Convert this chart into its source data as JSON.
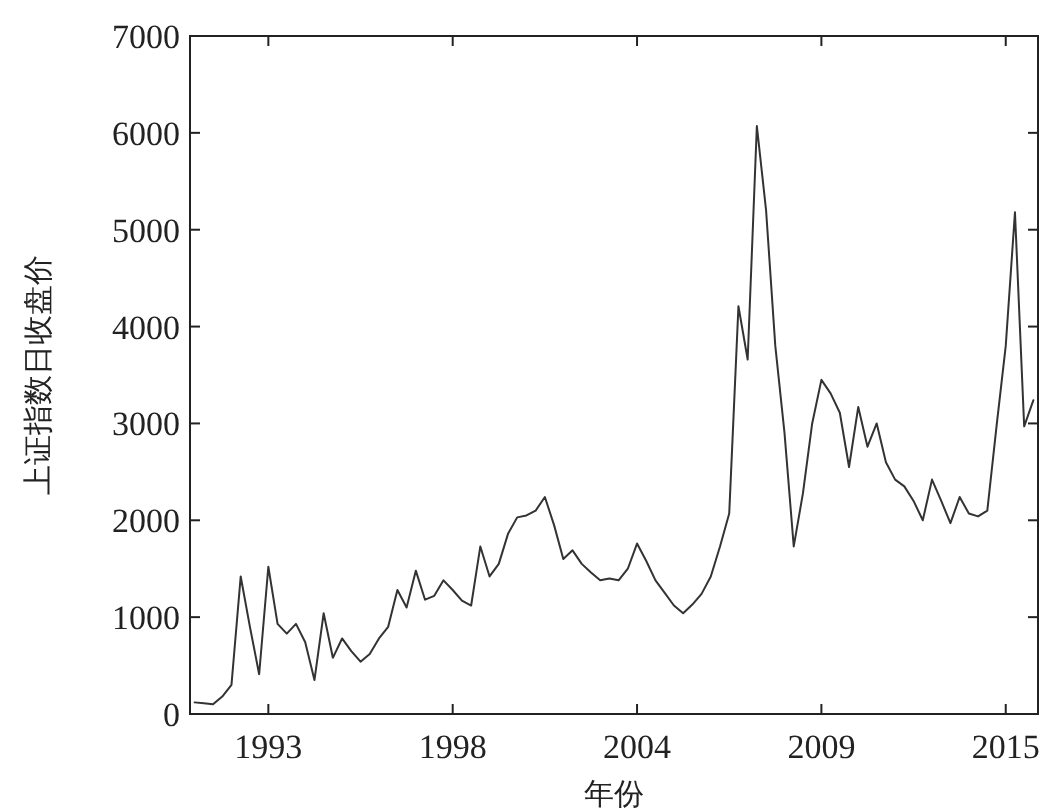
{
  "chart_data": {
    "type": "line",
    "xlabel": "年份",
    "ylabel": "上证指数日收盘价",
    "categories": [
      null,
      null,
      null,
      null,
      null,
      null,
      null,
      null,
      "1993",
      null,
      null,
      null,
      null,
      null,
      null,
      null,
      null,
      null,
      null,
      null,
      null,
      null,
      null,
      null,
      null,
      null,
      null,
      null,
      "1998",
      null,
      null,
      null,
      null,
      null,
      null,
      null,
      null,
      null,
      null,
      null,
      null,
      null,
      null,
      null,
      null,
      null,
      null,
      null,
      "2004",
      null,
      null,
      null,
      null,
      null,
      null,
      null,
      null,
      null,
      null,
      null,
      null,
      null,
      null,
      null,
      null,
      null,
      null,
      null,
      "2009",
      null,
      null,
      null,
      null,
      null,
      null,
      null,
      null,
      null,
      null,
      null,
      null,
      null,
      null,
      null,
      null,
      null,
      null,
      null,
      "2015",
      null,
      null,
      null
    ],
    "ylim": [
      0,
      7000
    ],
    "yticks": [
      0,
      1000,
      2000,
      3000,
      4000,
      5000,
      6000,
      7000
    ],
    "grid": false,
    "marker": "none",
    "line_style": "solid",
    "series": [
      {
        "color": "#333333",
        "values": [
          120,
          110,
          100,
          180,
          300,
          1420,
          900,
          410,
          1520,
          930,
          830,
          930,
          740,
          350,
          1040,
          580,
          780,
          650,
          540,
          620,
          780,
          900,
          1280,
          1100,
          1480,
          1180,
          1220,
          1380,
          1280,
          1170,
          1120,
          1730,
          1420,
          1550,
          1860,
          2030,
          2050,
          2100,
          2240,
          1950,
          1600,
          1690,
          1550,
          1460,
          1380,
          1400,
          1380,
          1500,
          1760,
          1580,
          1380,
          1250,
          1120,
          1040,
          1130,
          1240,
          1420,
          1730,
          2070,
          4210,
          3660,
          6070,
          5200,
          3800,
          2900,
          1730,
          2280,
          3000,
          3450,
          3310,
          3110,
          2550,
          3170,
          2760,
          3000,
          2600,
          2420,
          2350,
          2200,
          2000,
          2420,
          2200,
          1970,
          2240,
          2070,
          2040,
          2100,
          2970,
          3800,
          5180,
          2970,
          3240
        ]
      }
    ]
  }
}
